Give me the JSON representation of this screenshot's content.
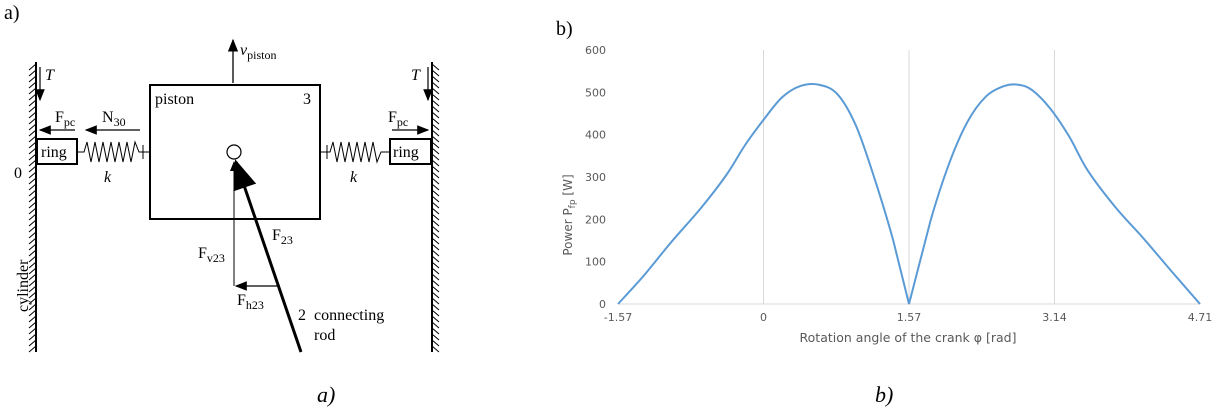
{
  "panel_a": {
    "label": "a)",
    "caption": "a)",
    "v_piston": "v",
    "v_piston_sub": "piston",
    "T_left": "T",
    "T_right": "T",
    "Fpc_left": "F",
    "Fpc_left_sub": "pc",
    "Fpc_right": "F",
    "Fpc_right_sub": "pc",
    "N30": "N",
    "N30_sub": "30",
    "piston": "piston",
    "num3": "3",
    "ring_left": "ring",
    "ring_right": "ring",
    "zero": "0",
    "k_left": "k",
    "k_right": "k",
    "cylinder": "cylinder",
    "F23": "F",
    "F23_sub": "23",
    "Fv23": "F",
    "Fv23_sub": "v23",
    "Fh23": "F",
    "Fh23_sub": "h23",
    "num2": "2",
    "conn1": "connecting",
    "conn2": "rod"
  },
  "panel_b": {
    "label": "b)",
    "caption": "b)"
  },
  "chart_data": {
    "type": "line",
    "ylabel": "Power P",
    "ylabel_sub": "fp",
    "ylabel_unit": "[W]",
    "xlabel": "Rotation angle of the crank φ [rad]",
    "xticks": [
      "-1.57",
      "0",
      "1.57",
      "3.14",
      "4.71"
    ],
    "xtick_values": [
      -1.57,
      0,
      1.57,
      3.14,
      4.71
    ],
    "yticks": [
      "0",
      "100",
      "200",
      "300",
      "400",
      "500",
      "600"
    ],
    "ylim": [
      0,
      600
    ],
    "xlim": [
      -1.57,
      4.71
    ],
    "color": "#5b9bd5",
    "grid": "vertical",
    "series": [
      {
        "x": [
          -1.57,
          -1.3,
          -1.0,
          -0.67,
          -0.4,
          -0.2,
          0,
          0.2,
          0.4,
          0.6,
          0.8,
          1.0,
          1.2,
          1.4,
          1.57,
          1.8,
          2.0,
          2.2,
          2.4,
          2.6,
          2.75,
          2.9,
          3.1,
          3.3,
          3.5,
          3.8,
          4.1,
          4.4,
          4.71
        ],
        "y": [
          0,
          65,
          145,
          228,
          305,
          375,
          435,
          488,
          515,
          518,
          495,
          420,
          295,
          150,
          0,
          195,
          330,
          430,
          490,
          515,
          518,
          505,
          460,
          395,
          315,
          228,
          155,
          78,
          0
        ]
      }
    ]
  }
}
